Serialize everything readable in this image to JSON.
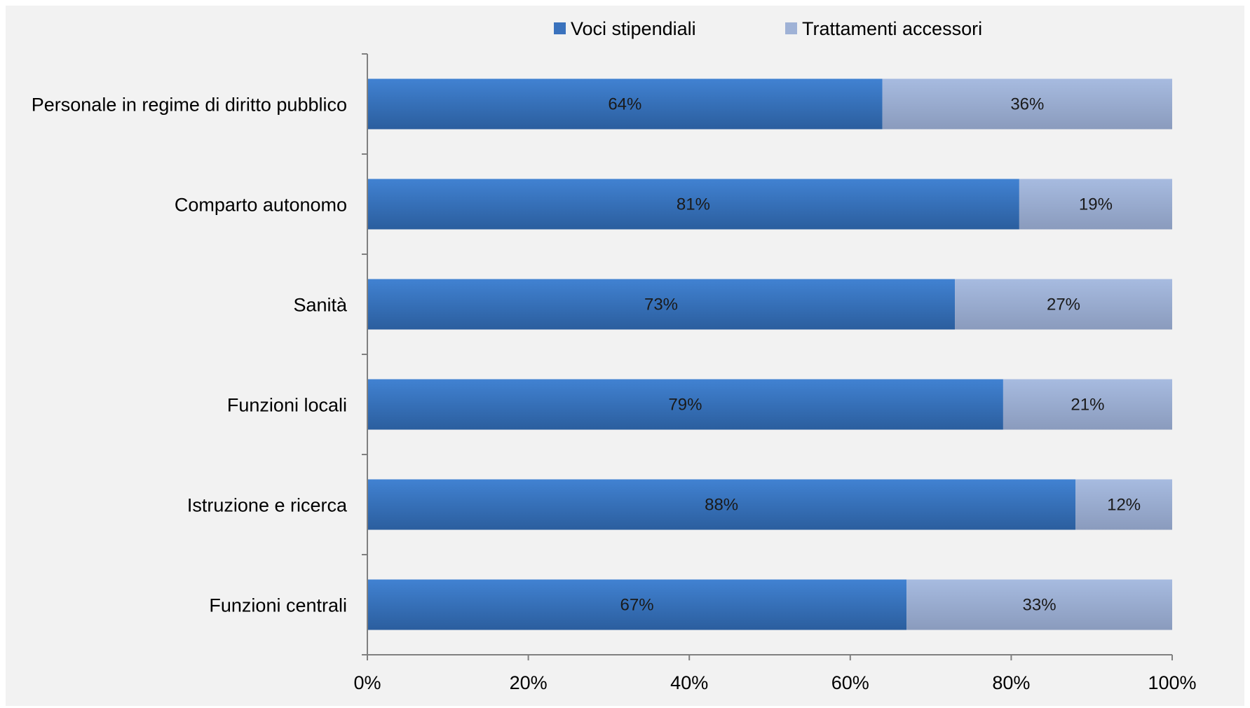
{
  "colors": {
    "background": "#f2f2f2",
    "series_dark": "#3a72bd",
    "series_light": "#9fb2d6",
    "axis": "#808080"
  },
  "chart_data": {
    "type": "bar",
    "orientation": "horizontal",
    "stacked": true,
    "percent": true,
    "categories": [
      "Personale in regime di diritto pubblico",
      "Comparto autonomo",
      "Sanità",
      "Funzioni locali",
      "Istruzione e ricerca",
      "Funzioni centrali"
    ],
    "series": [
      {
        "name": "Voci stipendiali",
        "values": [
          64,
          81,
          73,
          79,
          88,
          67
        ],
        "labels": [
          "64%",
          "81%",
          "73%",
          "79%",
          "88%",
          "67%"
        ]
      },
      {
        "name": "Trattamenti accessori",
        "values": [
          36,
          19,
          27,
          21,
          12,
          33
        ],
        "labels": [
          "36%",
          "19%",
          "27%",
          "21%",
          "12%",
          "33%"
        ]
      }
    ],
    "xlim": [
      0,
      100
    ],
    "xticks": [
      "0%",
      "20%",
      "40%",
      "60%",
      "80%",
      "100%"
    ],
    "grid": false,
    "legend_position": "top"
  }
}
